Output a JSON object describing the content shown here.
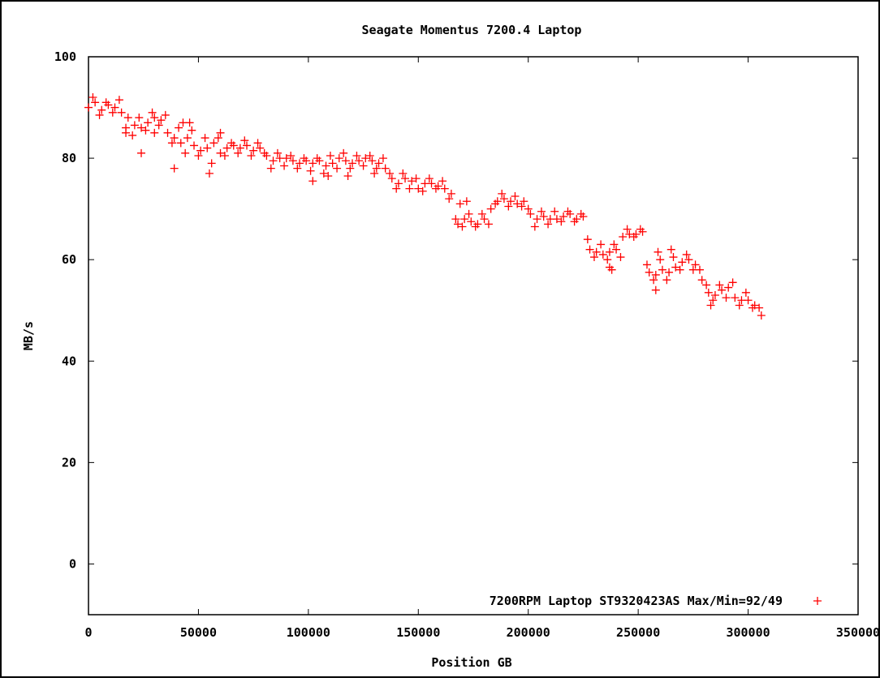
{
  "chart_data": {
    "type": "scatter",
    "title": "Seagate Momentus 7200.4 Laptop",
    "xlabel": "Position GB",
    "ylabel": "MB/s",
    "xlim": [
      0,
      350000
    ],
    "ylim": [
      -10,
      100
    ],
    "x_ticks": [
      0,
      50000,
      100000,
      150000,
      200000,
      250000,
      300000,
      350000
    ],
    "x_tick_labels": [
      "0",
      "50000",
      "100000",
      "150000",
      "200000",
      "250000",
      "300000",
      "350000"
    ],
    "y_ticks": [
      0,
      20,
      40,
      60,
      80,
      100
    ],
    "y_tick_labels": [
      "0",
      "20",
      "40",
      "60",
      "80",
      "100"
    ],
    "grid": false,
    "legend_position": "bottom-right",
    "marker": "plus",
    "series_color": "#ff0000",
    "series": [
      {
        "name": "7200RPM Laptop ST9320423AS Max/Min=92/49",
        "points": [
          [
            0,
            90
          ],
          [
            3000,
            91
          ],
          [
            6000,
            89.5
          ],
          [
            9000,
            90.5
          ],
          [
            12000,
            90
          ],
          [
            15000,
            89
          ],
          [
            18000,
            88
          ],
          [
            21000,
            86.5
          ],
          [
            24000,
            86
          ],
          [
            27000,
            87
          ],
          [
            30000,
            88
          ],
          [
            33000,
            87.5
          ],
          [
            36000,
            85
          ],
          [
            39000,
            84
          ],
          [
            42000,
            83
          ],
          [
            45000,
            84
          ],
          [
            48000,
            82.5
          ],
          [
            51000,
            81.5
          ],
          [
            54000,
            82
          ],
          [
            57000,
            83
          ],
          [
            60000,
            81
          ],
          [
            63000,
            82
          ],
          [
            66000,
            82.5
          ],
          [
            69000,
            82
          ],
          [
            72000,
            82.5
          ],
          [
            75000,
            81.5
          ],
          [
            78000,
            82
          ],
          [
            81000,
            80.5
          ],
          [
            84000,
            79.5
          ],
          [
            87000,
            80
          ],
          [
            90000,
            80
          ],
          [
            93000,
            79.5
          ],
          [
            96000,
            79
          ],
          [
            99000,
            79.5
          ],
          [
            102000,
            79
          ],
          [
            105000,
            79.5
          ],
          [
            108000,
            78.5
          ],
          [
            111000,
            79
          ],
          [
            114000,
            80
          ],
          [
            117000,
            79.5
          ],
          [
            120000,
            79
          ],
          [
            123000,
            79.5
          ],
          [
            126000,
            80
          ],
          [
            129000,
            79.5
          ],
          [
            132000,
            79
          ],
          [
            135000,
            78
          ],
          [
            138000,
            76
          ],
          [
            141000,
            75
          ],
          [
            144000,
            76
          ],
          [
            147000,
            75.5
          ],
          [
            150000,
            74
          ],
          [
            153000,
            75
          ],
          [
            156000,
            75
          ],
          [
            159000,
            74.5
          ],
          [
            162000,
            74
          ],
          [
            165000,
            73
          ],
          [
            168000,
            67
          ],
          [
            171000,
            68
          ],
          [
            174000,
            67.5
          ],
          [
            177000,
            67
          ],
          [
            180000,
            68
          ],
          [
            183000,
            70
          ],
          [
            186000,
            71.5
          ],
          [
            189000,
            72
          ],
          [
            192000,
            71.5
          ],
          [
            195000,
            71
          ],
          [
            198000,
            71.5
          ],
          [
            201000,
            69
          ],
          [
            204000,
            68
          ],
          [
            207000,
            68.5
          ],
          [
            210000,
            68
          ],
          [
            213000,
            68
          ],
          [
            216000,
            68.5
          ],
          [
            219000,
            69
          ],
          [
            222000,
            68
          ],
          [
            225000,
            68.5
          ],
          [
            228000,
            62
          ],
          [
            231000,
            61.5
          ],
          [
            234000,
            61
          ],
          [
            237000,
            61.5
          ],
          [
            240000,
            62
          ],
          [
            243000,
            64.5
          ],
          [
            246000,
            65
          ],
          [
            249000,
            65
          ],
          [
            252000,
            65.5
          ],
          [
            255000,
            57.5
          ],
          [
            258000,
            57
          ],
          [
            261000,
            58
          ],
          [
            264000,
            57.5
          ],
          [
            267000,
            58.5
          ],
          [
            270000,
            59.5
          ],
          [
            273000,
            60
          ],
          [
            276000,
            59
          ],
          [
            279000,
            56
          ],
          [
            282000,
            53.5
          ],
          [
            285000,
            53
          ],
          [
            288000,
            54
          ],
          [
            291000,
            54.5
          ],
          [
            294000,
            52.5
          ],
          [
            297000,
            52
          ],
          [
            300000,
            52
          ],
          [
            303000,
            51
          ],
          [
            306000,
            49
          ],
          [
            2000,
            92
          ],
          [
            5000,
            88.5
          ],
          [
            8000,
            91
          ],
          [
            11000,
            89
          ],
          [
            14000,
            91.5
          ],
          [
            17000,
            86
          ],
          [
            20000,
            84.5
          ],
          [
            23000,
            88
          ],
          [
            26000,
            85.5
          ],
          [
            29000,
            89
          ],
          [
            32000,
            86.5
          ],
          [
            35000,
            88.5
          ],
          [
            38000,
            83
          ],
          [
            41000,
            86
          ],
          [
            44000,
            81
          ],
          [
            47000,
            85.5
          ],
          [
            50000,
            80.5
          ],
          [
            53000,
            84
          ],
          [
            56000,
            79
          ],
          [
            59000,
            84
          ],
          [
            62000,
            80.5
          ],
          [
            65000,
            83
          ],
          [
            68000,
            81
          ],
          [
            71000,
            83.5
          ],
          [
            74000,
            80.5
          ],
          [
            77000,
            83
          ],
          [
            80000,
            81
          ],
          [
            83000,
            78
          ],
          [
            86000,
            81
          ],
          [
            89000,
            78.5
          ],
          [
            92000,
            80.5
          ],
          [
            95000,
            78
          ],
          [
            98000,
            80
          ],
          [
            101000,
            77.5
          ],
          [
            104000,
            80
          ],
          [
            107000,
            77
          ],
          [
            110000,
            80.5
          ],
          [
            113000,
            78
          ],
          [
            116000,
            81
          ],
          [
            119000,
            78
          ],
          [
            122000,
            80.5
          ],
          [
            125000,
            78.5
          ],
          [
            128000,
            80.5
          ],
          [
            131000,
            78
          ],
          [
            134000,
            80
          ],
          [
            137000,
            77
          ],
          [
            140000,
            74
          ],
          [
            143000,
            77
          ],
          [
            146000,
            74
          ],
          [
            149000,
            76
          ],
          [
            152000,
            73.5
          ],
          [
            155000,
            76
          ],
          [
            158000,
            74
          ],
          [
            161000,
            75.5
          ],
          [
            164000,
            72
          ],
          [
            167000,
            68
          ],
          [
            170000,
            66.5
          ],
          [
            173000,
            69
          ],
          [
            176000,
            66.5
          ],
          [
            179000,
            69
          ],
          [
            182000,
            67
          ],
          [
            185000,
            71
          ],
          [
            188000,
            73
          ],
          [
            191000,
            70.5
          ],
          [
            194000,
            72.5
          ],
          [
            197000,
            70.5
          ],
          [
            200000,
            70
          ],
          [
            203000,
            66.5
          ],
          [
            206000,
            69.5
          ],
          [
            209000,
            67
          ],
          [
            212000,
            69.5
          ],
          [
            215000,
            67.5
          ],
          [
            218000,
            69.5
          ],
          [
            221000,
            67.5
          ],
          [
            224000,
            69
          ],
          [
            227000,
            64
          ],
          [
            230000,
            60.5
          ],
          [
            233000,
            63
          ],
          [
            236000,
            60
          ],
          [
            239000,
            63
          ],
          [
            242000,
            60.5
          ],
          [
            245000,
            66
          ],
          [
            248000,
            64.5
          ],
          [
            251000,
            66
          ],
          [
            254000,
            59
          ],
          [
            257000,
            56
          ],
          [
            260000,
            60
          ],
          [
            263000,
            56
          ],
          [
            266000,
            60.5
          ],
          [
            269000,
            58
          ],
          [
            272000,
            61
          ],
          [
            275000,
            58
          ],
          [
            278000,
            58
          ],
          [
            281000,
            55
          ],
          [
            284000,
            52
          ],
          [
            287000,
            55
          ],
          [
            290000,
            52.5
          ],
          [
            293000,
            55.5
          ],
          [
            296000,
            51
          ],
          [
            299000,
            53.5
          ],
          [
            302000,
            50.5
          ],
          [
            305000,
            50.5
          ],
          [
            24000,
            81
          ],
          [
            39000,
            78
          ],
          [
            55000,
            77
          ],
          [
            60000,
            85
          ],
          [
            43000,
            87
          ],
          [
            46000,
            87
          ],
          [
            102000,
            75.5
          ],
          [
            109000,
            76.5
          ],
          [
            118000,
            76.5
          ],
          [
            130000,
            77
          ],
          [
            169000,
            71
          ],
          [
            172000,
            71.5
          ],
          [
            237000,
            58.5
          ],
          [
            238000,
            58
          ],
          [
            258000,
            54
          ],
          [
            259000,
            61.5
          ],
          [
            265000,
            62
          ],
          [
            283000,
            51
          ],
          [
            17000,
            85
          ],
          [
            30000,
            85
          ]
        ]
      }
    ]
  }
}
